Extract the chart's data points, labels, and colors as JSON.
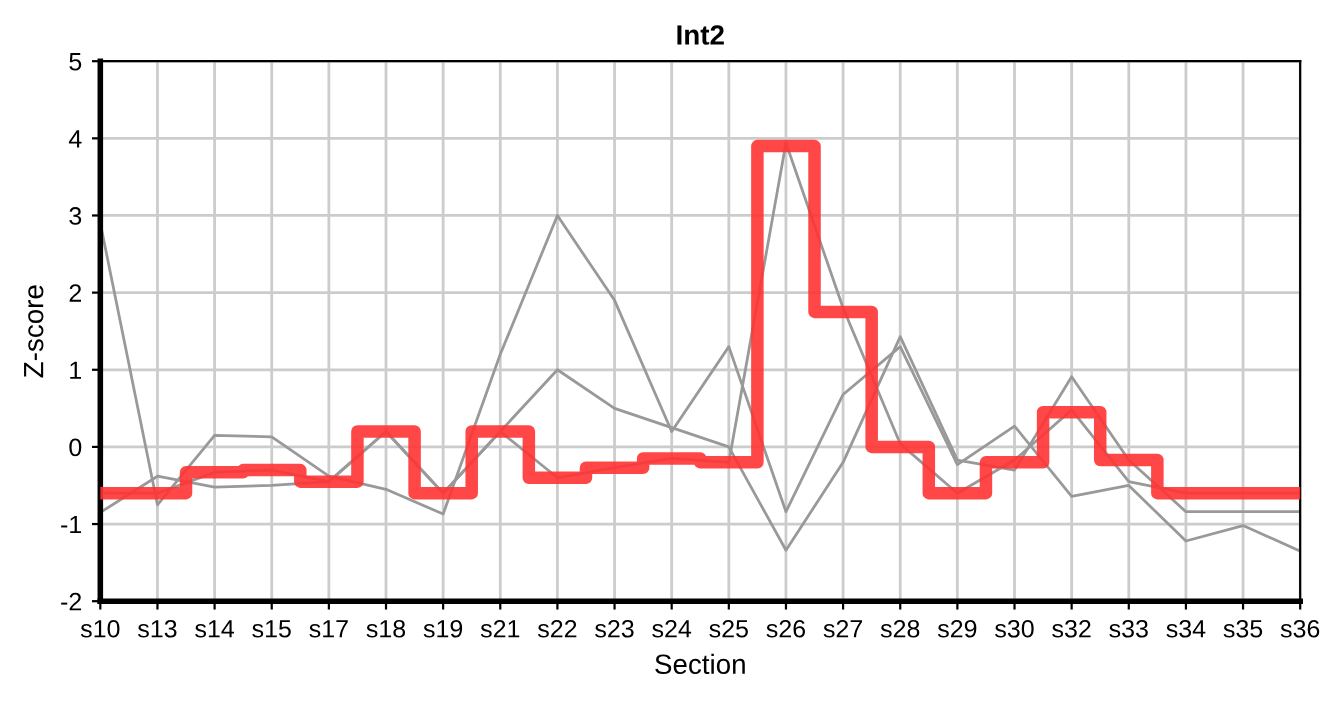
{
  "chart_data": {
    "type": "line",
    "title": "Int2",
    "xlabel": "Section",
    "ylabel": "Z-score",
    "categories": [
      "s10",
      "s13",
      "s14",
      "s15",
      "s17",
      "s18",
      "s19",
      "s21",
      "s22",
      "s23",
      "s24",
      "s25",
      "s26",
      "s27",
      "s28",
      "s29",
      "s30",
      "s32",
      "s33",
      "s34",
      "s35",
      "s36"
    ],
    "series": [
      {
        "color": "#999999",
        "values": [
          2.9,
          -0.75,
          0.15,
          0.13,
          -0.38,
          -0.55,
          -0.87,
          1.2,
          3.0,
          1.9,
          0.2,
          1.3,
          -0.84,
          0.68,
          1.3,
          -0.23,
          0.27,
          -0.64,
          -0.5,
          -1.22,
          -1.02,
          -1.35
        ]
      },
      {
        "color": "#999999",
        "values": [
          -0.85,
          -0.38,
          -0.52,
          -0.5,
          -0.45,
          0.2,
          -0.6,
          0.2,
          1.0,
          0.5,
          0.25,
          0.0,
          -1.34,
          -0.2,
          1.43,
          -0.17,
          -0.3,
          0.91,
          -0.17,
          -0.84,
          -0.84,
          -0.84
        ]
      },
      {
        "color": "#999999",
        "values": [
          -0.6,
          -0.6,
          -0.33,
          -0.3,
          -0.45,
          0.2,
          -0.6,
          0.2,
          -0.4,
          -0.27,
          -0.15,
          -0.2,
          3.94,
          1.8,
          0.04,
          -0.6,
          -0.17,
          0.48,
          -0.45,
          -0.6,
          -0.6,
          -0.6
        ]
      },
      {
        "type": "step",
        "color": "#ff3333",
        "values": [
          -0.6,
          -0.6,
          -0.33,
          -0.3,
          -0.45,
          0.2,
          -0.6,
          0.2,
          -0.4,
          -0.27,
          -0.15,
          -0.2,
          3.9,
          1.75,
          0.0,
          -0.6,
          -0.2,
          0.45,
          -0.17,
          -0.6,
          -0.6,
          -0.6
        ]
      }
    ],
    "ylim": [
      -2,
      5
    ],
    "yticks": [
      -2,
      -1,
      0,
      1,
      2,
      3,
      4,
      5
    ],
    "grid": true,
    "legend": false,
    "marker": "none",
    "line_style": "solid"
  }
}
